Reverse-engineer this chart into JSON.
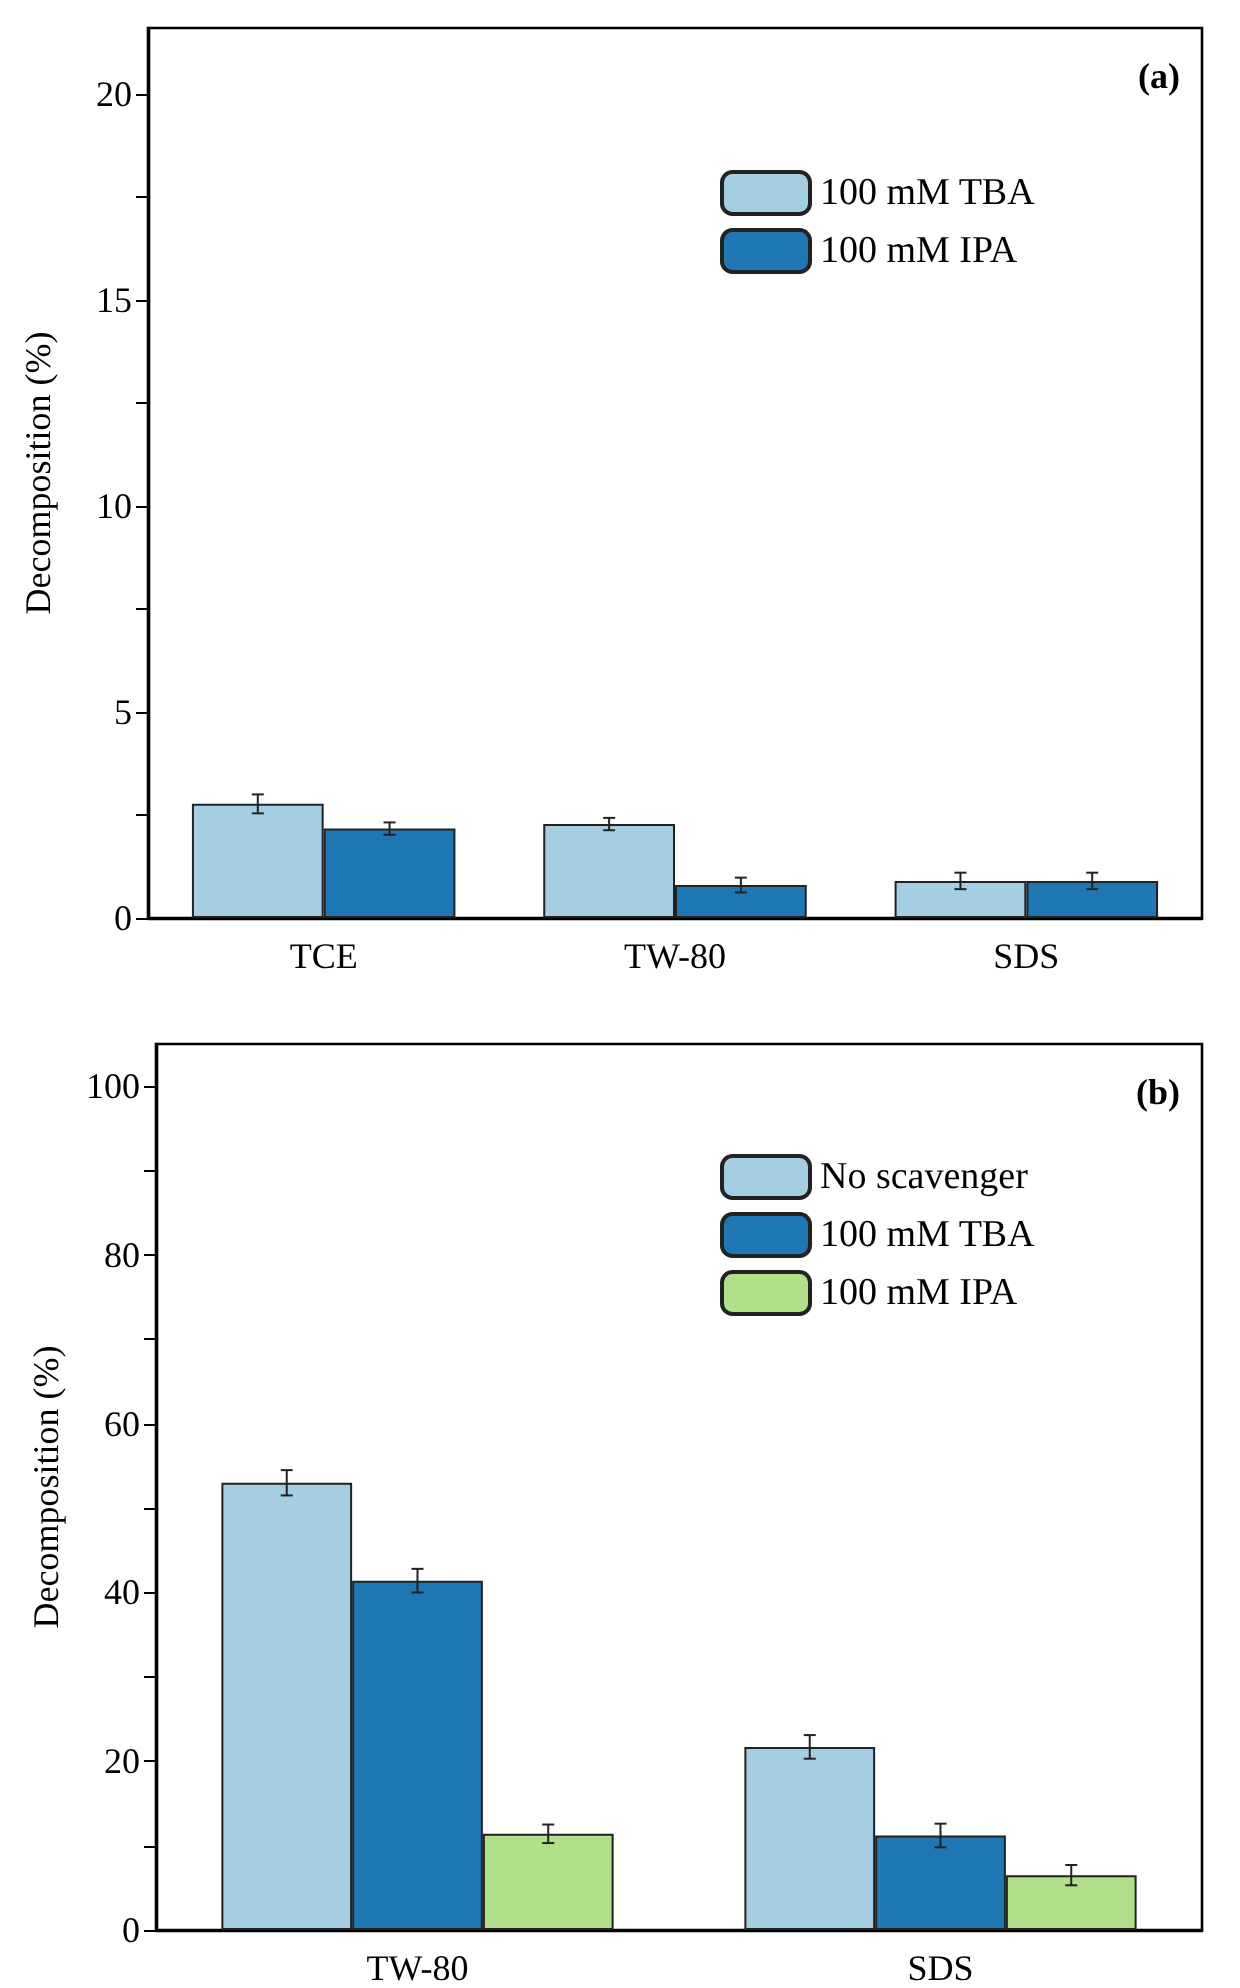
{
  "chart_data": [
    {
      "type": "bar",
      "title": "(a)",
      "ylabel": "Decomposition (%)",
      "categories": [
        "TCE",
        "TW-80",
        "SDS"
      ],
      "series": [
        {
          "name": "100 mM TBA",
          "color": "#a6cee3",
          "values": [
            2.77,
            2.28,
            0.9
          ],
          "errors": [
            0.23,
            0.15,
            0.2
          ]
        },
        {
          "name": "100 mM IPA",
          "color": "#1f78b4",
          "values": [
            2.17,
            0.8,
            0.9
          ],
          "errors": [
            0.15,
            0.18,
            0.2
          ]
        }
      ],
      "ylim": [
        0,
        21.6
      ],
      "yticks": [
        0,
        {
          "value": 2.5,
          "label": null
        },
        5,
        {
          "value": 7.5,
          "label": null
        },
        10,
        {
          "value": 12.5,
          "label": null
        },
        15,
        {
          "value": 17.5,
          "label": null
        },
        20
      ],
      "legend": "top right",
      "grid": false
    },
    {
      "type": "bar",
      "title": "(b)",
      "ylabel": "Decomposition (%)",
      "categories": [
        "TW-80",
        "SDS"
      ],
      "series": [
        {
          "name": "No scavenger",
          "color": "#a6cee3",
          "values": [
            53,
            21.7
          ],
          "errors": [
            1.5,
            1.4
          ]
        },
        {
          "name": "100 mM TBA",
          "color": "#1f78b4",
          "values": [
            41.4,
            11.2
          ],
          "errors": [
            1.4,
            1.4
          ]
        },
        {
          "name": "100 mM IPA",
          "color": "#b2df8a",
          "values": [
            11.4,
            6.5
          ],
          "errors": [
            1.1,
            1.2
          ]
        }
      ],
      "ylim": [
        0,
        105
      ],
      "yticks": [
        0,
        {
          "value": 10,
          "label": null
        },
        20,
        {
          "value": 30,
          "label": null
        },
        40,
        {
          "value": 50,
          "label": null
        },
        60,
        {
          "value": 70,
          "label": null
        },
        80,
        {
          "value": 90,
          "label": null
        },
        100
      ],
      "legend": "top right",
      "grid": false
    }
  ]
}
